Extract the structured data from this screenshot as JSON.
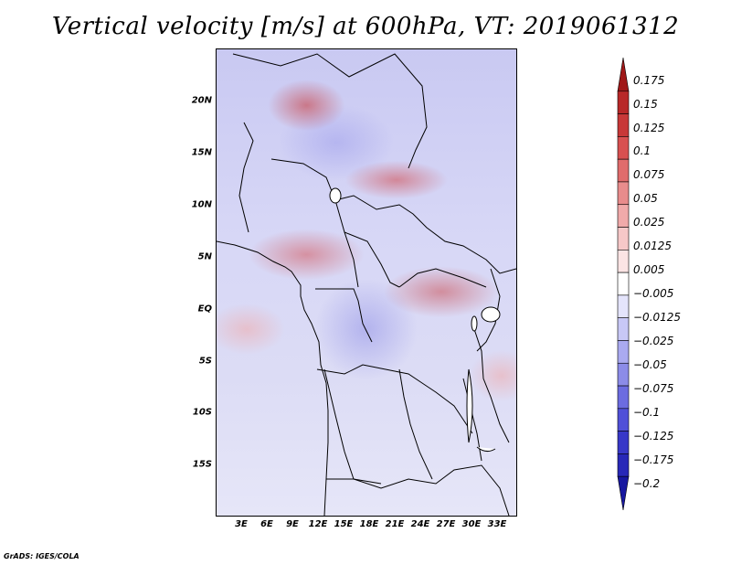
{
  "title": "Vertical velocity [m/s] at 600hPa, VT: 2019061312",
  "credit": "GrADS: IGES/COLA",
  "lat_labels": [
    "20N",
    "15N",
    "10N",
    "5N",
    "EQ",
    "5S",
    "10S",
    "15S"
  ],
  "lon_labels": [
    "3E",
    "6E",
    "9E",
    "12E",
    "15E",
    "18E",
    "21E",
    "24E",
    "27E",
    "30E",
    "33E"
  ],
  "colorbar": {
    "labels": [
      "0.175",
      "0.15",
      "0.125",
      "0.1",
      "0.075",
      "0.05",
      "0.025",
      "0.0125",
      "0.005",
      "−0.005",
      "−0.0125",
      "−0.025",
      "−0.05",
      "−0.075",
      "−0.1",
      "−0.125",
      "−0.175",
      "−0.2"
    ],
    "colors": [
      "#a01818",
      "#b82828",
      "#c83838",
      "#d85050",
      "#e06c6c",
      "#e88c8c",
      "#f0aaaa",
      "#f6c8c8",
      "#fbe4e4",
      "#ffffff",
      "#e4e4fb",
      "#c8c8f6",
      "#aaaaf0",
      "#8c8ce8",
      "#6c6ce0",
      "#5050d8",
      "#3838c8",
      "#2828b8",
      "#1818a0"
    ]
  }
}
